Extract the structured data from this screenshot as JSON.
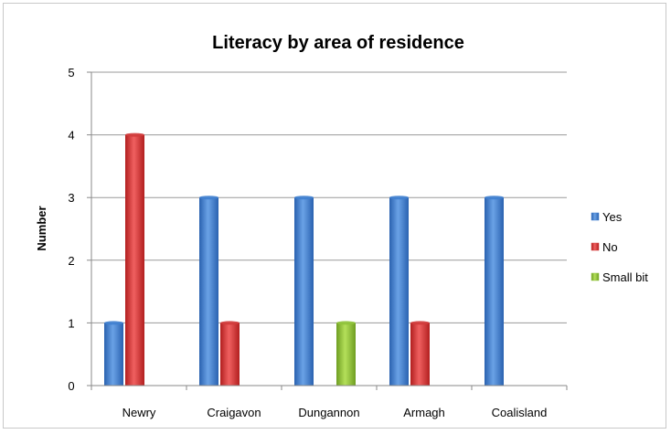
{
  "chart_data": {
    "type": "bar",
    "title": "Literacy by area of residence",
    "xlabel": "",
    "ylabel": "Number",
    "ylim": [
      0,
      5
    ],
    "yticks": [
      0,
      1,
      2,
      3,
      4,
      5
    ],
    "grid": true,
    "legend_position": "right",
    "categories": [
      "Newry",
      "Craigavon",
      "Dungannon",
      "Armagh",
      "Coalisland"
    ],
    "series": [
      {
        "name": "Yes",
        "color": "#3f7fd0",
        "values": [
          1,
          3,
          3,
          3,
          3
        ]
      },
      {
        "name": "No",
        "color": "#d23a3a",
        "values": [
          4,
          1,
          0,
          1,
          0
        ]
      },
      {
        "name": "Small bit",
        "color": "#8fc33a",
        "values": [
          0,
          0,
          1,
          0,
          0
        ]
      }
    ]
  }
}
